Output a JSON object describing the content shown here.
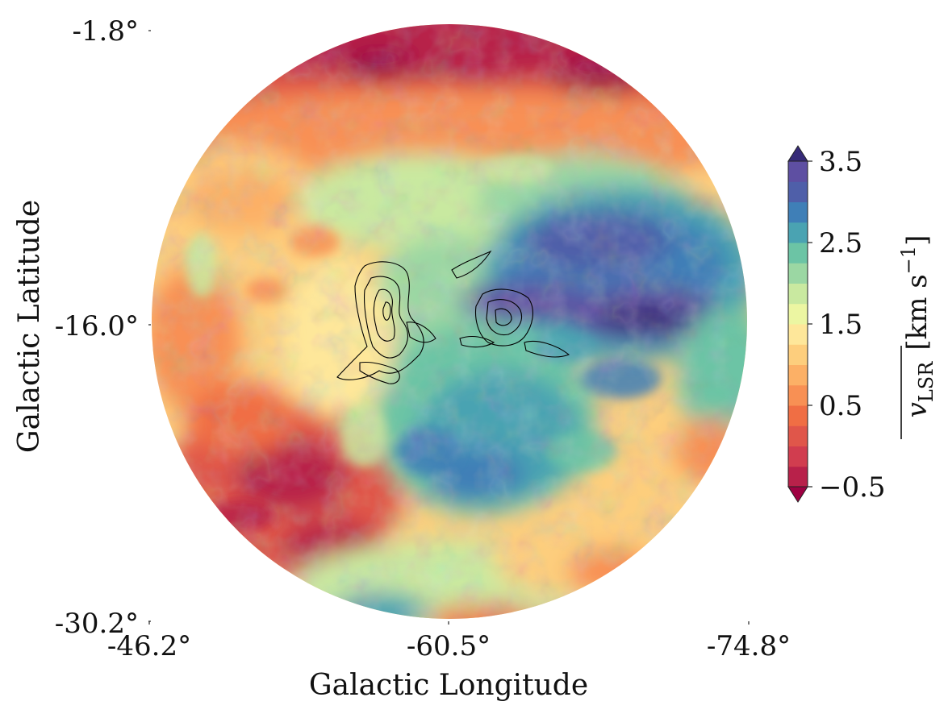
{
  "chart_data": {
    "type": "heatmap",
    "projection": "circular sky map (orthographic-like disc)",
    "xlabel": "Galactic Longitude",
    "ylabel": "Galactic Latitude",
    "x_ticks": [
      "-46.2°",
      "-60.5°",
      "-74.8°"
    ],
    "y_ticks": [
      "-1.8°",
      "-16.0°",
      "-30.2°"
    ],
    "x_tick_values": [
      -46.2,
      -60.5,
      -74.8
    ],
    "y_tick_values": [
      -1.8,
      -16.0,
      -30.2
    ],
    "xlim": [
      -46.2,
      -74.8
    ],
    "ylim": [
      -30.2,
      -1.8
    ],
    "colormap": "Spectral",
    "colorbar": {
      "label_main": "v",
      "label_sub": "LSR",
      "label_units": "[km s",
      "label_exp": "−1",
      "label_close": "]",
      "ticks": [
        "3.5",
        "2.5",
        "1.5",
        "0.5",
        "−0.5"
      ],
      "tick_values": [
        3.5,
        2.5,
        1.5,
        0.5,
        -0.5
      ],
      "range": [
        -0.5,
        3.5
      ],
      "levels": 16,
      "extend": "both",
      "colors": [
        "#9e0142",
        "#b8214a",
        "#d13d4f",
        "#e0564a",
        "#f06e44",
        "#f89054",
        "#fcb066",
        "#fdce7d",
        "#fee79a",
        "#ecf6a2",
        "#c9e9a0",
        "#9bd7a3",
        "#6cc4a5",
        "#4aa3b2",
        "#3f7fb7",
        "#4f5fa9",
        "#5e4fa2",
        "#362a78"
      ]
    },
    "contours": "black column-density contours over two cloud complexes near l≈-57° and l≈-64°, b≈-16°"
  }
}
